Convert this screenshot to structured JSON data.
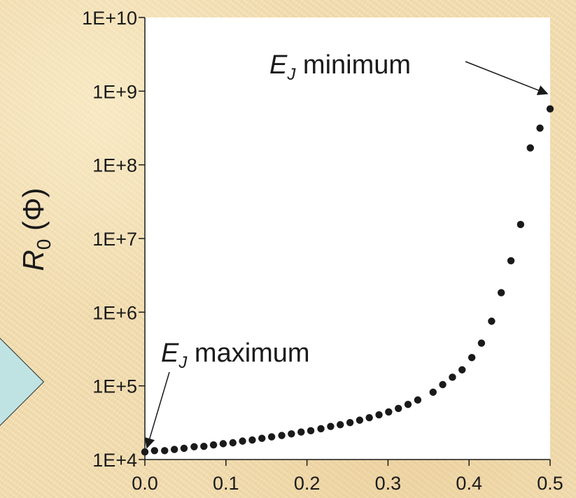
{
  "chart_data": {
    "type": "scatter",
    "title": "",
    "xlabel": "",
    "ylabel": {
      "symbol": "R",
      "subscript": "0",
      "rest": " (Φ)"
    },
    "xlim": [
      0.0,
      0.5
    ],
    "ylim": [
      10000,
      10000000000
    ],
    "yscale": "log",
    "grid": false,
    "x_ticks": [
      "0.0",
      "0.1",
      "0.2",
      "0.3",
      "0.4",
      "0.5"
    ],
    "x_tick_values": [
      0.0,
      0.1,
      0.2,
      0.3,
      0.4,
      0.5
    ],
    "y_ticks": [
      "1E+4",
      "1E+5",
      "1E+6",
      "1E+7",
      "1E+8",
      "1E+9",
      "1E+10"
    ],
    "y_tick_values": [
      10000,
      100000,
      1000000,
      10000000,
      100000000,
      1000000000,
      10000000000
    ],
    "marker_color": "#1a1a1a",
    "series": [
      {
        "x": [
          0.0,
          0.0119,
          0.0244,
          0.0364,
          0.0483,
          0.0608,
          0.0728,
          0.0847,
          0.0966,
          0.1086,
          0.1205,
          0.1325,
          0.1444,
          0.1564,
          0.1689,
          0.1808,
          0.1928,
          0.2047,
          0.2172,
          0.2292,
          0.2411,
          0.2531,
          0.265,
          0.2769,
          0.2889,
          0.3008,
          0.3128,
          0.3247,
          0.3367,
          0.3556,
          0.3675,
          0.3795,
          0.3914,
          0.4034,
          0.4153,
          0.4278,
          0.4397,
          0.4517,
          0.4636,
          0.4756,
          0.4875,
          0.5
        ],
        "y": [
          12700,
          13200,
          13200,
          13700,
          14200,
          14900,
          15100,
          15800,
          16400,
          16900,
          17800,
          18400,
          19400,
          20300,
          21200,
          22300,
          23600,
          24600,
          26200,
          28100,
          29700,
          31700,
          34200,
          37000,
          40500,
          44300,
          49400,
          56000,
          64300,
          82000,
          104000,
          131000,
          165000,
          242000,
          380000,
          754000,
          1840000,
          4990000,
          15500000,
          170000000,
          315000000,
          575000000
        ]
      }
    ],
    "annotations": [
      {
        "symbol": "E",
        "subscript": "J",
        "text": " minimum"
      },
      {
        "symbol": "E",
        "subscript": "J",
        "text": " maximum"
      }
    ]
  }
}
